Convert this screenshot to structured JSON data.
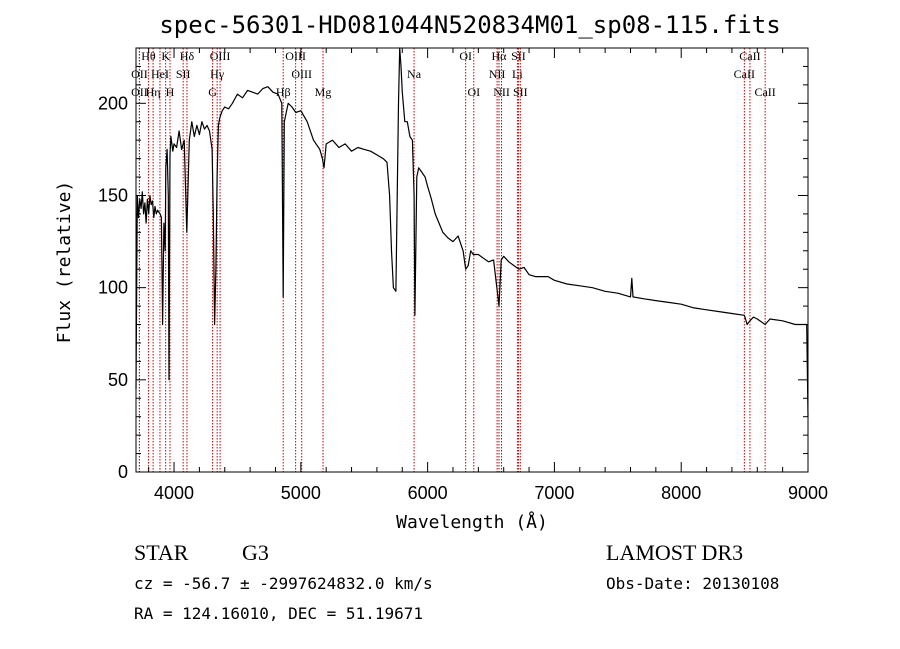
{
  "chart_data": {
    "type": "line",
    "title": "spec-56301-HD081044N520834M01_sp08-115.fits",
    "xlabel": "Wavelength (Å)",
    "ylabel": "Flux (relative)",
    "xlim": [
      3700,
      9000
    ],
    "ylim": [
      0,
      230
    ],
    "xticks": [
      4000,
      5000,
      6000,
      7000,
      8000,
      9000
    ],
    "yticks": [
      0,
      50,
      100,
      150,
      200
    ],
    "grid": false,
    "series": [
      {
        "x": [
          3700,
          3710,
          3720,
          3730,
          3740,
          3750,
          3760,
          3770,
          3780,
          3790,
          3800,
          3810,
          3820,
          3830,
          3840,
          3850,
          3860,
          3870,
          3880,
          3890,
          3900,
          3910,
          3920,
          3930,
          3935,
          3945,
          3955,
          3960,
          3968,
          3975,
          3990,
          4000,
          4020,
          4040,
          4060,
          4080,
          4101,
          4120,
          4140,
          4160,
          4180,
          4200,
          4220,
          4240,
          4260,
          4280,
          4300,
          4310,
          4320,
          4330,
          4340,
          4350,
          4360,
          4380,
          4400,
          4430,
          4460,
          4500,
          4540,
          4580,
          4620,
          4660,
          4700,
          4740,
          4780,
          4820,
          4850,
          4861,
          4870,
          4900,
          4930,
          4960,
          5000,
          5050,
          5100,
          5150,
          5170,
          5183,
          5200,
          5250,
          5300,
          5350,
          5400,
          5450,
          5500,
          5550,
          5600,
          5650,
          5680,
          5700,
          5715,
          5730,
          5750,
          5770,
          5780,
          5790,
          5800,
          5820,
          5840,
          5860,
          5880,
          5893,
          5900,
          5915,
          5930,
          5950,
          5980,
          6000,
          6030,
          6060,
          6090,
          6120,
          6160,
          6200,
          6240,
          6280,
          6300,
          6320,
          6340,
          6360,
          6400,
          6440,
          6480,
          6520,
          6563,
          6580,
          6600,
          6640,
          6680,
          6720,
          6760,
          6800,
          6850,
          6900,
          6950,
          7000,
          7100,
          7200,
          7300,
          7400,
          7500,
          7600,
          7610,
          7620,
          7700,
          7800,
          7900,
          8000,
          8100,
          8200,
          8300,
          8400,
          8498,
          8520,
          8542,
          8570,
          8600,
          8662,
          8700,
          8800,
          8900,
          8990,
          9000
        ],
        "values": [
          45,
          150,
          138,
          148,
          143,
          152,
          140,
          146,
          135,
          148,
          140,
          150,
          145,
          147,
          138,
          144,
          140,
          142,
          141,
          140,
          138,
          80,
          135,
          120,
          165,
          175,
          150,
          50,
          172,
          182,
          174,
          178,
          176,
          185,
          175,
          180,
          130,
          180,
          190,
          182,
          188,
          183,
          190,
          186,
          188,
          185,
          175,
          140,
          80,
          110,
          160,
          188,
          192,
          196,
          198,
          197,
          200,
          205,
          203,
          207,
          206,
          205,
          208,
          209,
          206,
          205,
          200,
          95,
          190,
          200,
          198,
          195,
          196,
          190,
          180,
          175,
          170,
          165,
          178,
          180,
          176,
          178,
          174,
          176,
          175,
          174,
          172,
          170,
          168,
          150,
          120,
          100,
          98,
          200,
          230,
          220,
          206,
          190,
          190,
          182,
          180,
          150,
          85,
          160,
          165,
          163,
          160,
          155,
          148,
          140,
          135,
          130,
          127,
          125,
          128,
          120,
          110,
          112,
          120,
          118,
          118,
          116,
          114,
          115,
          90,
          115,
          117,
          114,
          112,
          110,
          111,
          107,
          106,
          106,
          106,
          104,
          102,
          101,
          100,
          98,
          97,
          95,
          105,
          95,
          94,
          93,
          92,
          91,
          89,
          88,
          87,
          86,
          85,
          80,
          82,
          84,
          83,
          80,
          83,
          82,
          80,
          80,
          30
        ]
      }
    ],
    "line_markers": [
      {
        "label": "Hθ",
        "wavelength": 3798,
        "row": 0
      },
      {
        "label": "OII",
        "wavelength": 3727,
        "row": 1
      },
      {
        "label": "OII",
        "wavelength": 3727,
        "row": 2
      },
      {
        "label": "HeI",
        "wavelength": 3889,
        "row": 1
      },
      {
        "label": "Hη",
        "wavelength": 3835,
        "row": 2
      },
      {
        "label": "K",
        "wavelength": 3934,
        "row": 0
      },
      {
        "label": "SII",
        "wavelength": 4072,
        "row": 1
      },
      {
        "label": "H",
        "wavelength": 3968,
        "row": 2
      },
      {
        "label": "Hδ",
        "wavelength": 4102,
        "row": 0
      },
      {
        "label": "OIII",
        "wavelength": 4363,
        "row": 0
      },
      {
        "label": "Hγ",
        "wavelength": 4340,
        "row": 1
      },
      {
        "label": "G",
        "wavelength": 4304,
        "row": 2
      },
      {
        "label": "Hβ",
        "wavelength": 4861,
        "row": 2
      },
      {
        "label": "OIII",
        "wavelength": 4959,
        "row": 0
      },
      {
        "label": "OIII",
        "wavelength": 5007,
        "row": 1
      },
      {
        "label": "Mg",
        "wavelength": 5175,
        "row": 2
      },
      {
        "label": "Na",
        "wavelength": 5893,
        "row": 1
      },
      {
        "label": "OI",
        "wavelength": 6300,
        "row": 0
      },
      {
        "label": "OI",
        "wavelength": 6364,
        "row": 2
      },
      {
        "label": "Hα",
        "wavelength": 6563,
        "row": 0
      },
      {
        "label": "NII",
        "wavelength": 6548,
        "row": 1
      },
      {
        "label": "NII",
        "wavelength": 6583,
        "row": 2
      },
      {
        "label": "SII",
        "wavelength": 6716,
        "row": 0
      },
      {
        "label": "Li",
        "wavelength": 6708,
        "row": 1
      },
      {
        "label": "SII",
        "wavelength": 6731,
        "row": 2
      },
      {
        "label": "CaII",
        "wavelength": 8542,
        "row": 0
      },
      {
        "label": "CaII",
        "wavelength": 8498,
        "row": 1
      },
      {
        "label": "CaII",
        "wavelength": 8662,
        "row": 2
      }
    ]
  },
  "info": {
    "object_type": "STAR",
    "subclass": "G3",
    "survey": "LAMOST DR3",
    "redshift": "cz = -56.7 ± -2997624832.0 km/s",
    "obs_date": "Obs-Date: 20130108",
    "coords": "RA = 124.16010, DEC =  51.19671"
  },
  "colors": {
    "spectrum": "#000000",
    "line_marker": "#cc0000"
  }
}
